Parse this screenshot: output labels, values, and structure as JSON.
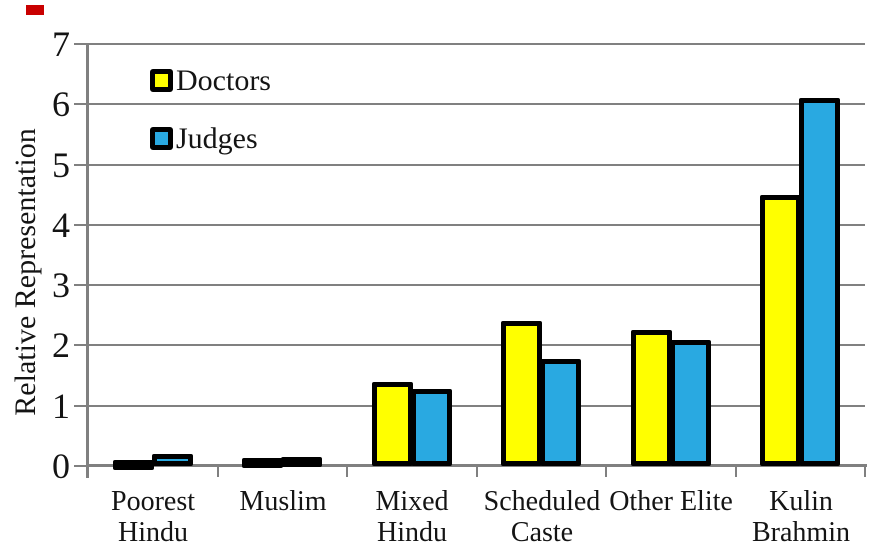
{
  "annotation_mark": {
    "color": "#c90000"
  },
  "y_axis": {
    "title": "Relative Representation",
    "tick_labels": [
      "0",
      "1",
      "2",
      "3",
      "4",
      "5",
      "6",
      "7"
    ],
    "min": 0,
    "max": 7,
    "step": 1
  },
  "x_axis": {
    "categories": [
      "Poorest Hindu",
      "Muslim",
      "Mixed Hindu",
      "Scheduled Caste",
      "Other Elite",
      "Kulin Brahmin"
    ]
  },
  "legend": {
    "position": "top-left-inside",
    "entries": [
      {
        "label": "Doctors",
        "color": "#ffff00"
      },
      {
        "label": "Judges",
        "color": "#29a9e1"
      }
    ]
  },
  "chart_data": {
    "type": "bar",
    "title": "",
    "categories": [
      "Poorest Hindu",
      "Muslim",
      "Mixed Hindu",
      "Scheduled Caste",
      "Other Elite",
      "Kulin Brahmin"
    ],
    "series": [
      {
        "name": "Doctors",
        "color": "#ffff00",
        "values": [
          0.1,
          0.13,
          1.4,
          2.4,
          2.25,
          4.5
        ]
      },
      {
        "name": "Judges",
        "color": "#29a9e1",
        "values": [
          0.2,
          0.15,
          1.27,
          1.77,
          2.09,
          6.1
        ]
      }
    ],
    "xlabel": "",
    "ylabel": "Relative Representation",
    "ylim": [
      0,
      7
    ],
    "grid": true,
    "gridline_color": "#808080",
    "axis_color": "#808080",
    "bar_outline_color": "#000000",
    "legend_position": "top-left-inside"
  }
}
